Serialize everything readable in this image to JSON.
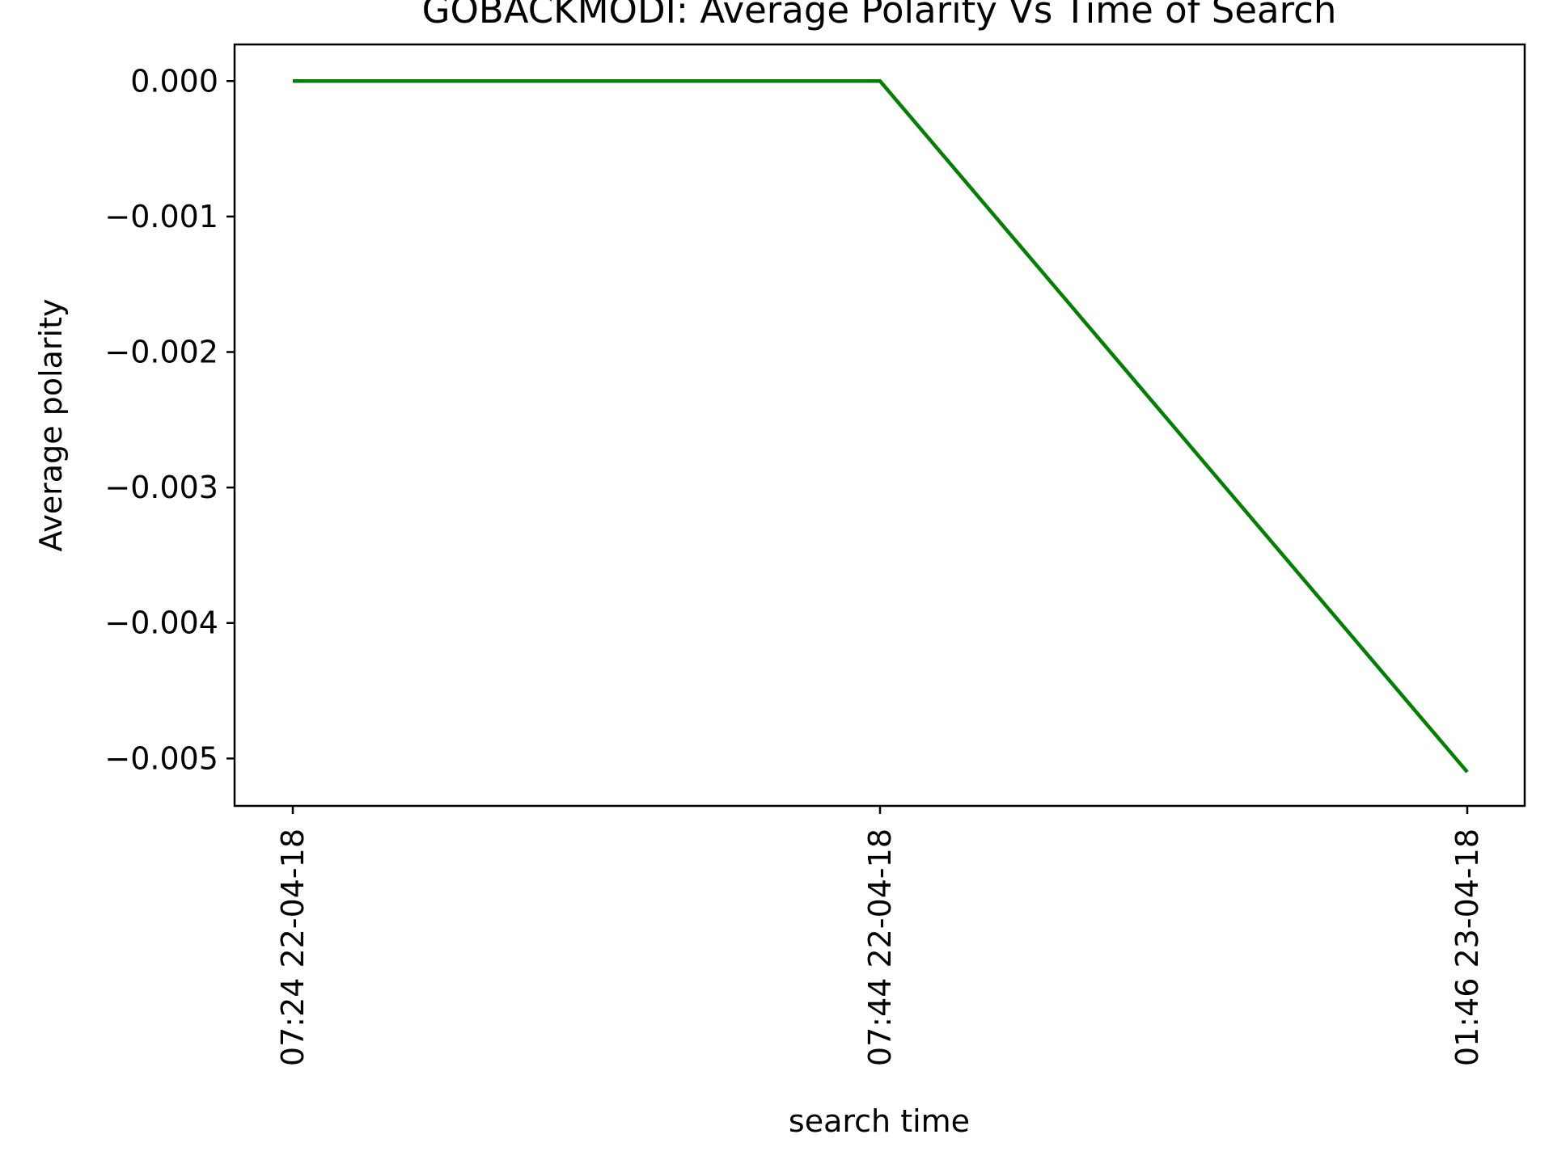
{
  "chart_data": {
    "type": "line",
    "title": "GOBACKMODI: Average Polarity Vs Time of Search",
    "xlabel": "search time",
    "ylabel": "Average polarity",
    "x": [
      "07:24 22-04-18",
      "07:44 22-04-18",
      "01:46 23-04-18"
    ],
    "series": [
      {
        "values": [
          0.0,
          0.0,
          -0.0051
        ],
        "color": "#008000"
      }
    ],
    "ylim": [
      -0.00535,
      0.00027
    ],
    "y_ticks": [
      0.0,
      -0.001,
      -0.002,
      -0.003,
      -0.004,
      -0.005
    ],
    "y_tick_labels": [
      "0.000",
      "−0.001",
      "−0.002",
      "−0.003",
      "−0.004",
      "−0.005"
    ],
    "x_ticks": [
      "07:24 22-04-18",
      "07:44 22-04-18",
      "01:46 23-04-18"
    ],
    "grid": false,
    "legend": "none"
  }
}
